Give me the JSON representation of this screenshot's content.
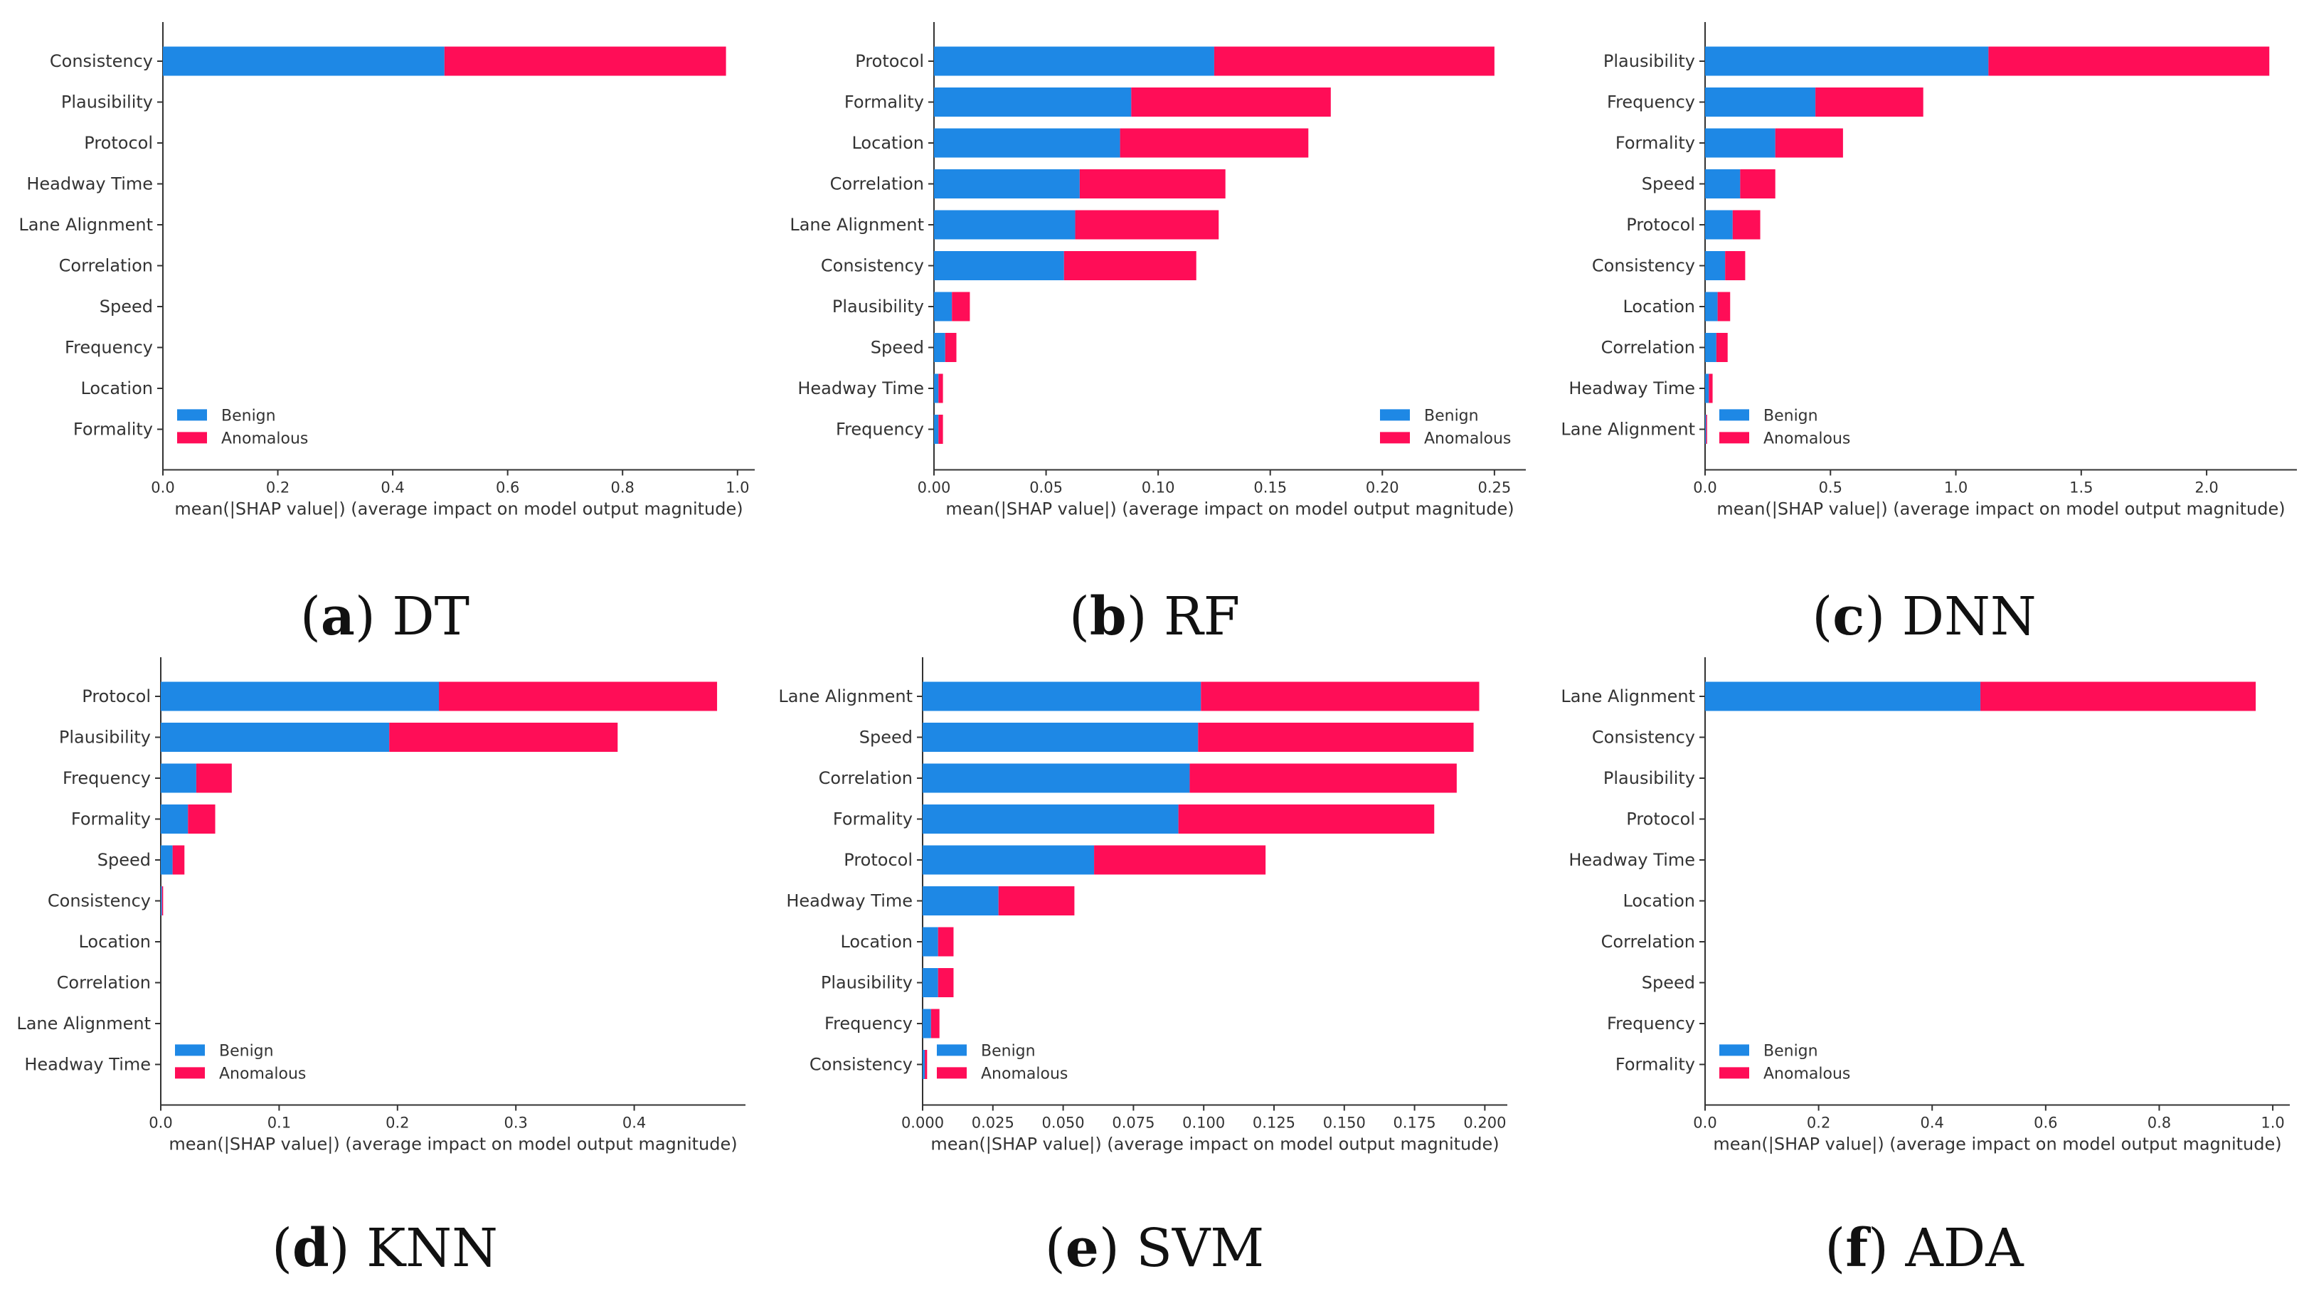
{
  "colors": {
    "benign": "#1e88e5",
    "anomalous": "#ff0d57",
    "axis": "#333333",
    "text": "#333333"
  },
  "chart_data": [
    {
      "id": "a",
      "type": "bar",
      "subtype": "stacked-horizontal",
      "caption_letter": "a",
      "caption_model": "DT",
      "xlabel": "mean(|SHAP value|) (average impact on model output magnitude)",
      "xlim": [
        0,
        1.03
      ],
      "xticks": [
        0.0,
        0.2,
        0.4,
        0.6,
        0.8,
        1.0
      ],
      "xtick_labels": [
        "0.0",
        "0.2",
        "0.4",
        "0.6",
        "0.8",
        "1.0"
      ],
      "categories": [
        "Consistency",
        "Plausibility",
        "Protocol",
        "Headway Time",
        "Lane Alignment",
        "Correlation",
        "Speed",
        "Frequency",
        "Location",
        "Formality"
      ],
      "series": [
        {
          "name": "Benign",
          "values": [
            0.49,
            0,
            0,
            0,
            0,
            0,
            0,
            0,
            0,
            0
          ]
        },
        {
          "name": "Anomalous",
          "values": [
            0.49,
            0,
            0,
            0,
            0,
            0,
            0,
            0,
            0,
            0
          ]
        }
      ],
      "legend": [
        "Benign",
        "Anomalous"
      ],
      "legend_position": "bottom-left"
    },
    {
      "id": "b",
      "type": "bar",
      "subtype": "stacked-horizontal",
      "caption_letter": "b",
      "caption_model": "RF",
      "xlabel": "mean(|SHAP value|) (average impact on model output magnitude)",
      "xlim": [
        0,
        0.264
      ],
      "xticks": [
        0.0,
        0.05,
        0.1,
        0.15,
        0.2,
        0.25
      ],
      "xtick_labels": [
        "0.00",
        "0.05",
        "0.10",
        "0.15",
        "0.20",
        "0.25"
      ],
      "categories": [
        "Protocol",
        "Formality",
        "Location",
        "Correlation",
        "Lane Alignment",
        "Consistency",
        "Plausibility",
        "Speed",
        "Headway Time",
        "Frequency"
      ],
      "series": [
        {
          "name": "Benign",
          "values": [
            0.125,
            0.088,
            0.083,
            0.065,
            0.063,
            0.058,
            0.008,
            0.005,
            0.002,
            0.002
          ]
        },
        {
          "name": "Anomalous",
          "values": [
            0.125,
            0.089,
            0.084,
            0.065,
            0.064,
            0.059,
            0.008,
            0.005,
            0.002,
            0.002
          ]
        }
      ],
      "legend": [
        "Benign",
        "Anomalous"
      ],
      "legend_position": "bottom-right"
    },
    {
      "id": "c",
      "type": "bar",
      "subtype": "stacked-horizontal",
      "caption_letter": "c",
      "caption_model": "DNN",
      "xlabel": "mean(|SHAP value|) (average impact on model output magnitude)",
      "xlim": [
        0,
        2.36
      ],
      "xticks": [
        0.0,
        0.5,
        1.0,
        1.5,
        2.0
      ],
      "xtick_labels": [
        "0.0",
        "0.5",
        "1.0",
        "1.5",
        "2.0"
      ],
      "categories": [
        "Plausibility",
        "Frequency",
        "Formality",
        "Speed",
        "Protocol",
        "Consistency",
        "Location",
        "Correlation",
        "Headway Time",
        "Lane Alignment"
      ],
      "series": [
        {
          "name": "Benign",
          "values": [
            1.13,
            0.44,
            0.28,
            0.14,
            0.11,
            0.08,
            0.05,
            0.045,
            0.015,
            0.004
          ]
        },
        {
          "name": "Anomalous",
          "values": [
            1.12,
            0.43,
            0.27,
            0.14,
            0.11,
            0.08,
            0.05,
            0.045,
            0.015,
            0.004
          ]
        }
      ],
      "legend": [
        "Benign",
        "Anomalous"
      ],
      "legend_position": "bottom-left"
    },
    {
      "id": "d",
      "type": "bar",
      "subtype": "stacked-horizontal",
      "caption_letter": "d",
      "caption_model": "KNN",
      "xlabel": "mean(|SHAP value|) (average impact on model output magnitude)",
      "xlim": [
        0,
        0.494
      ],
      "xticks": [
        0.0,
        0.1,
        0.2,
        0.3,
        0.4
      ],
      "xtick_labels": [
        "0.0",
        "0.1",
        "0.2",
        "0.3",
        "0.4"
      ],
      "categories": [
        "Protocol",
        "Plausibility",
        "Frequency",
        "Formality",
        "Speed",
        "Consistency",
        "Location",
        "Correlation",
        "Lane Alignment",
        "Headway Time"
      ],
      "series": [
        {
          "name": "Benign",
          "values": [
            0.235,
            0.193,
            0.03,
            0.023,
            0.01,
            0.001,
            0,
            0,
            0,
            0
          ]
        },
        {
          "name": "Anomalous",
          "values": [
            0.235,
            0.193,
            0.03,
            0.023,
            0.01,
            0.001,
            0,
            0,
            0,
            0
          ]
        }
      ],
      "legend": [
        "Benign",
        "Anomalous"
      ],
      "legend_position": "bottom-left"
    },
    {
      "id": "e",
      "type": "bar",
      "subtype": "stacked-horizontal",
      "caption_letter": "e",
      "caption_model": "SVM",
      "xlabel": "mean(|SHAP value|) (average impact on model output magnitude)",
      "xlim": [
        0,
        0.208
      ],
      "xticks": [
        0.0,
        0.025,
        0.05,
        0.075,
        0.1,
        0.125,
        0.15,
        0.175,
        0.2
      ],
      "xtick_labels": [
        "0.000",
        "0.025",
        "0.050",
        "0.075",
        "0.100",
        "0.125",
        "0.150",
        "0.175",
        "0.200"
      ],
      "categories": [
        "Lane Alignment",
        "Speed",
        "Correlation",
        "Formality",
        "Protocol",
        "Headway Time",
        "Location",
        "Plausibility",
        "Frequency",
        "Consistency"
      ],
      "series": [
        {
          "name": "Benign",
          "values": [
            0.099,
            0.098,
            0.095,
            0.091,
            0.061,
            0.027,
            0.0055,
            0.0055,
            0.003,
            0.0008
          ]
        },
        {
          "name": "Anomalous",
          "values": [
            0.099,
            0.098,
            0.095,
            0.091,
            0.061,
            0.027,
            0.0055,
            0.0055,
            0.003,
            0.0008
          ]
        }
      ],
      "legend": [
        "Benign",
        "Anomalous"
      ],
      "legend_position": "bottom-left"
    },
    {
      "id": "f",
      "type": "bar",
      "subtype": "stacked-horizontal",
      "caption_letter": "f",
      "caption_model": "ADA",
      "xlabel": "mean(|SHAP value|) (average impact on model output magnitude)",
      "xlim": [
        0,
        1.03
      ],
      "xticks": [
        0.0,
        0.2,
        0.4,
        0.6,
        0.8,
        1.0
      ],
      "xtick_labels": [
        "0.0",
        "0.2",
        "0.4",
        "0.6",
        "0.8",
        "1.0"
      ],
      "categories": [
        "Lane Alignment",
        "Consistency",
        "Plausibility",
        "Protocol",
        "Headway Time",
        "Location",
        "Correlation",
        "Speed",
        "Frequency",
        "Formality"
      ],
      "series": [
        {
          "name": "Benign",
          "values": [
            0.485,
            0,
            0,
            0,
            0,
            0,
            0,
            0,
            0,
            0
          ]
        },
        {
          "name": "Anomalous",
          "values": [
            0.485,
            0,
            0,
            0,
            0,
            0,
            0,
            0,
            0,
            0
          ]
        }
      ],
      "legend": [
        "Benign",
        "Anomalous"
      ],
      "legend_position": "bottom-left"
    }
  ]
}
